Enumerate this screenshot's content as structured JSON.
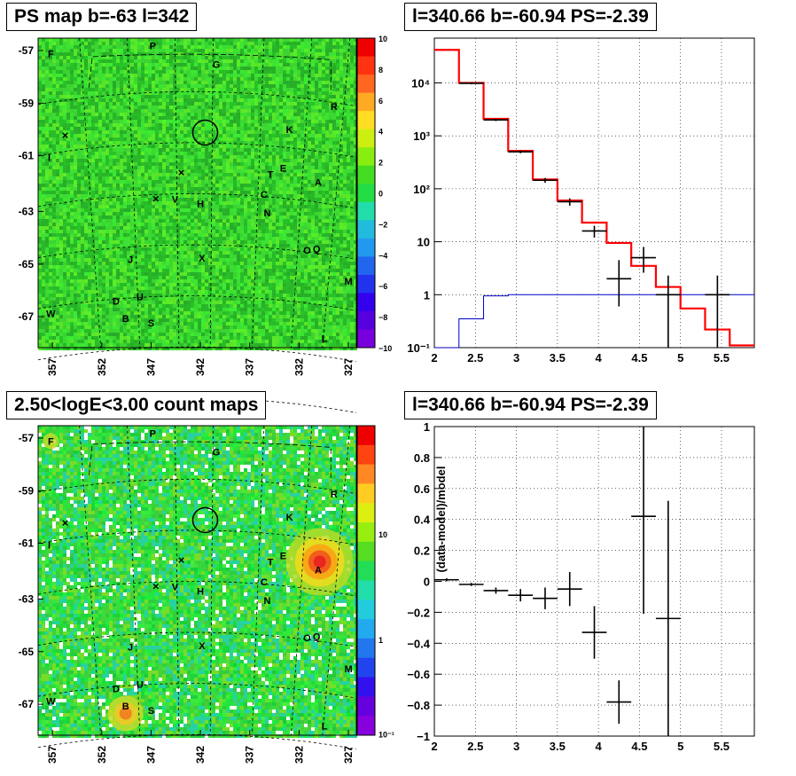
{
  "panels": {
    "map_top_title": "PS map b=-63 l=342",
    "spec_top_title": "l=340.66 b=-60.94 PS=-2.39",
    "map_bottom_title": "2.50<logE<3.00 count maps",
    "ratio_bottom_title": "l=340.66 b=-60.94 PS=-2.39"
  },
  "colors": {
    "red": "#ff0000",
    "blue": "#0000cc",
    "black": "#000000",
    "map_green": "#22dd22"
  },
  "chart_data": [
    {
      "type": "heatmap",
      "title": "PS map b=-63 l=342",
      "x_ticks": [
        "357",
        "352",
        "347",
        "342",
        "337",
        "332",
        "327"
      ],
      "y_ticks": [
        "-57",
        "-59",
        "-61",
        "-63",
        "-65",
        "-67"
      ],
      "colorbar": {
        "min": -10,
        "max": 10,
        "ticks": [
          "10",
          "8",
          "6",
          "4",
          "2",
          "0",
          "−2",
          "−4",
          "−6",
          "−8",
          "−10"
        ]
      },
      "source_labels": [
        "F",
        "P",
        "G",
        "R",
        "K",
        "I",
        "T",
        "E",
        "A",
        "V",
        "H",
        "C",
        "N",
        "J",
        "X",
        "O",
        "Q",
        "M",
        "D",
        "U",
        "W",
        "B",
        "S",
        "L"
      ]
    },
    {
      "type": "line",
      "title": "l=340.66 b=-60.94 PS=-2.39",
      "xlim": [
        2,
        5.9
      ],
      "ylim": [
        0.1,
        70000
      ],
      "yscale": "log",
      "x_ticks": [
        "2",
        "2.5",
        "3",
        "3.5",
        "4",
        "4.5",
        "5",
        "5.5"
      ],
      "y_ticks": [
        "10⁻¹",
        "1",
        "10",
        "10²",
        "10³",
        "10⁴"
      ],
      "bin_edges": [
        2.0,
        2.3,
        2.6,
        2.9,
        3.2,
        3.5,
        3.8,
        4.1,
        4.4,
        4.7,
        5.0,
        5.3,
        5.6,
        5.9
      ],
      "series": [
        {
          "style": "step",
          "color": "red",
          "values": [
            42000,
            10000,
            2100,
            520,
            150,
            60,
            23,
            9.5,
            3.5,
            1.4,
            0.55,
            0.22,
            0.11
          ]
        },
        {
          "style": "step",
          "color": "blue",
          "values": [
            0.1,
            0.35,
            0.95,
            1.0,
            1.0,
            1.0,
            1.0,
            1.0,
            1.0,
            1.0,
            1.0,
            1.0,
            1.0
          ]
        },
        {
          "style": "errorbar",
          "color": "black",
          "points": [
            {
              "x": 2.45,
              "y": 9800,
              "xerr": 0.15,
              "ylo": 9400,
              "yhi": 10200
            },
            {
              "x": 2.75,
              "y": 2000,
              "xerr": 0.15,
              "ylo": 1900,
              "yhi": 2100
            },
            {
              "x": 3.05,
              "y": 500,
              "xerr": 0.15,
              "ylo": 470,
              "yhi": 530
            },
            {
              "x": 3.35,
              "y": 145,
              "xerr": 0.15,
              "ylo": 130,
              "yhi": 160
            },
            {
              "x": 3.65,
              "y": 57,
              "xerr": 0.15,
              "ylo": 48,
              "yhi": 66
            },
            {
              "x": 3.95,
              "y": 16,
              "xerr": 0.15,
              "ylo": 12,
              "yhi": 20
            },
            {
              "x": 4.25,
              "y": 2,
              "xerr": 0.15,
              "ylo": 0.6,
              "yhi": 4.5
            },
            {
              "x": 4.55,
              "y": 5,
              "xerr": 0.15,
              "ylo": 2.6,
              "yhi": 8
            },
            {
              "x": 4.85,
              "y": 1,
              "xerr": 0.15,
              "ylo": 0.1,
              "yhi": 2.3
            },
            {
              "x": 5.45,
              "y": 1,
              "xerr": 0.15,
              "ylo": 0.1,
              "yhi": 2.3
            }
          ]
        }
      ]
    },
    {
      "type": "heatmap",
      "title": "2.50<logE<3.00 count maps",
      "x_ticks": [
        "357",
        "352",
        "347",
        "342",
        "337",
        "332",
        "327"
      ],
      "y_ticks": [
        "-57",
        "-59",
        "-61",
        "-63",
        "-65",
        "-67"
      ],
      "colorbar": {
        "scale": "log",
        "ticks": [
          "10",
          "1",
          "10⁻¹"
        ]
      },
      "source_labels": [
        "F",
        "P",
        "G",
        "R",
        "K",
        "I",
        "T",
        "E",
        "A",
        "V",
        "H",
        "C",
        "N",
        "J",
        "X",
        "O",
        "Q",
        "M",
        "D",
        "U",
        "W",
        "B",
        "S",
        "L"
      ]
    },
    {
      "type": "scatter",
      "title": "l=340.66 b=-60.94 PS=-2.39",
      "ylabel": "(data-model)/model",
      "xlim": [
        2,
        5.9
      ],
      "ylim": [
        -1,
        1
      ],
      "x_ticks": [
        "2",
        "2.5",
        "3",
        "3.5",
        "4",
        "4.5",
        "5",
        "5.5"
      ],
      "y_ticks": [
        "1",
        "0.8",
        "0.6",
        "0.4",
        "0.2",
        "0",
        "−0.2",
        "−0.4",
        "−0.6",
        "−0.8",
        "−1"
      ],
      "points": [
        {
          "x": 2.15,
          "y": 0.01,
          "xerr": 0.15,
          "yerr": 0.01
        },
        {
          "x": 2.45,
          "y": -0.02,
          "xerr": 0.15,
          "yerr": 0.01
        },
        {
          "x": 2.75,
          "y": -0.06,
          "xerr": 0.15,
          "yerr": 0.02
        },
        {
          "x": 3.05,
          "y": -0.09,
          "xerr": 0.15,
          "yerr": 0.04
        },
        {
          "x": 3.35,
          "y": -0.11,
          "xerr": 0.15,
          "yerr": 0.07
        },
        {
          "x": 3.65,
          "y": -0.05,
          "xerr": 0.15,
          "yerr": 0.11
        },
        {
          "x": 3.95,
          "y": -0.33,
          "xerr": 0.15,
          "yerr": 0.17
        },
        {
          "x": 4.25,
          "y": -0.78,
          "xerr": 0.15,
          "yerr": 0.14
        },
        {
          "x": 4.55,
          "y": 0.42,
          "xerr": 0.15,
          "yerr": 0.63
        },
        {
          "x": 4.85,
          "y": -0.24,
          "xerr": 0.15,
          "yerr": 0.76
        }
      ]
    }
  ]
}
